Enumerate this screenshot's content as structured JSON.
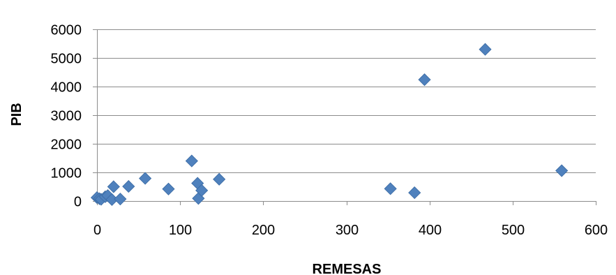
{
  "chart_data": {
    "type": "scatter",
    "title": "",
    "xlabel": "REMESAS",
    "ylabel": "PIB",
    "xlim": [
      0,
      600
    ],
    "ylim": [
      0,
      6000
    ],
    "x_ticks": [
      0,
      100,
      200,
      300,
      400,
      500,
      600
    ],
    "y_ticks": [
      0,
      1000,
      2000,
      3000,
      4000,
      5000,
      6000
    ],
    "grid": "horizontal",
    "legend": "none",
    "marker": "diamond",
    "colors": {
      "marker": "#4f81bd",
      "marker_stroke": "#3a6aa3",
      "grid": "#8c8c8c",
      "axis": "#8c8c8c"
    },
    "series": [
      {
        "x": [
          0,
          3,
          5,
          10,
          13,
          18,
          20,
          28,
          38,
          58,
          86,
          114,
          121,
          122,
          126,
          147,
          353,
          382,
          394,
          467,
          559
        ],
        "y": [
          120,
          80,
          60,
          150,
          190,
          50,
          500,
          70,
          510,
          790,
          420,
          1400,
          620,
          90,
          370,
          760,
          430,
          290,
          4240,
          5300,
          1060
        ]
      }
    ]
  }
}
